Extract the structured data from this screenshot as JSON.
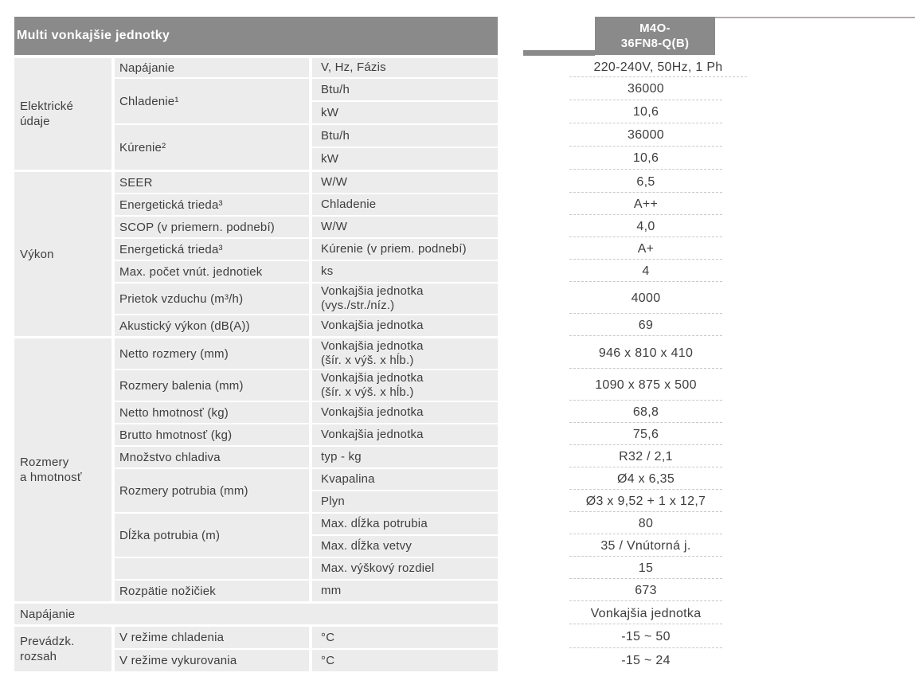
{
  "header": {
    "title": "Multi vonkajšie jednotky",
    "model_line1": "M4O-",
    "model_line2": "36FN8-Q(B)"
  },
  "colors": {
    "bar_gray": "#8a8a8a",
    "row_bg": "#ececec",
    "text": "#3e3e3e",
    "dash": "#c9c9c9",
    "topline": "#b4acac"
  },
  "table": {
    "sections": [
      {
        "group_l1": "Elektrické",
        "group_l2": "údaje",
        "rows": [
          {
            "label": "Napájanie",
            "unit": "V, Hz, Fázis",
            "value": "220-240V, 50Hz, 1 Ph"
          },
          {
            "label": "Chladenie¹",
            "unit": "Btu/h",
            "value": "36000"
          },
          {
            "unit": "kW",
            "value": "10,6"
          },
          {
            "label": "Kúrenie²",
            "unit": "Btu/h",
            "value": "36000"
          },
          {
            "unit": "kW",
            "value": "10,6"
          }
        ]
      },
      {
        "group_l1": "Výkon",
        "rows": [
          {
            "label": "SEER",
            "unit": "W/W",
            "value": "6,5"
          },
          {
            "label": "Energetická trieda³",
            "unit": "Chladenie",
            "value": "A++"
          },
          {
            "label": "SCOP (v priemern. podnebí)",
            "unit": "W/W",
            "value": "4,0"
          },
          {
            "label": "Energetická trieda³",
            "unit": "Kúrenie (v priem. podnebí)",
            "value": "A+"
          },
          {
            "label": "Max. počet vnút. jednotiek",
            "unit": "ks",
            "value": "4"
          },
          {
            "label": "Prietok vzduchu (m³/h)",
            "unit": "Vonkajšia jednotka",
            "unit2": "(vys./str./níz.)",
            "value": "4000"
          },
          {
            "label": "Akustický výkon (dB(A))",
            "unit": "Vonkajšia jednotka",
            "value": "69"
          }
        ]
      },
      {
        "group_l1": "Rozmery",
        "group_l2": "a hmotnosť",
        "rows": [
          {
            "label": "Netto rozmery (mm)",
            "unit": "Vonkajšia jednotka",
            "unit2": "(šír. x výš. x hĺb.)",
            "value": "946 x 810 x 410"
          },
          {
            "label": "Rozmery balenia (mm)",
            "unit": "Vonkajšia jednotka",
            "unit2": "(šír. x výš. x hĺb.)",
            "value": "1090 x 875 x 500"
          },
          {
            "label": "Netto hmotnosť (kg)",
            "unit": "Vonkajšia jednotka",
            "value": "68,8"
          },
          {
            "label": "Brutto hmotnosť (kg)",
            "unit": "Vonkajšia jednotka",
            "value": "75,6"
          },
          {
            "label": "Množstvo chladiva",
            "unit": "typ - kg",
            "value": "R32 / 2,1"
          },
          {
            "label": "Rozmery potrubia (mm)",
            "unit": "Kvapalina",
            "value": "Ø4 x 6,35"
          },
          {
            "unit": "Plyn",
            "value": "Ø3 x 9,52 + 1 x 12,7"
          },
          {
            "label": "Dĺžka potrubia (m)",
            "unit": "Max. dĺžka potrubia",
            "value": "80"
          },
          {
            "unit": "Max. dĺžka vetvy",
            "value": "35 / Vnútorná j."
          },
          {
            "unit": "Max. výškový rozdiel",
            "value": "15"
          },
          {
            "label": "Rozpätie nožičiek",
            "unit": "mm",
            "value": "673"
          }
        ]
      },
      {
        "group_l1": "Napájanie",
        "rows": [
          {
            "value": "Vonkajšia jednotka"
          }
        ]
      },
      {
        "group_l1": "Prevádzk.",
        "group_l2": "rozsah",
        "rows": [
          {
            "label": "V režime chladenia",
            "unit": "°C",
            "value": "-15 ~ 50"
          },
          {
            "label": "V režime vykurovania",
            "unit": "°C",
            "value": "-15 ~ 24"
          }
        ]
      }
    ]
  }
}
